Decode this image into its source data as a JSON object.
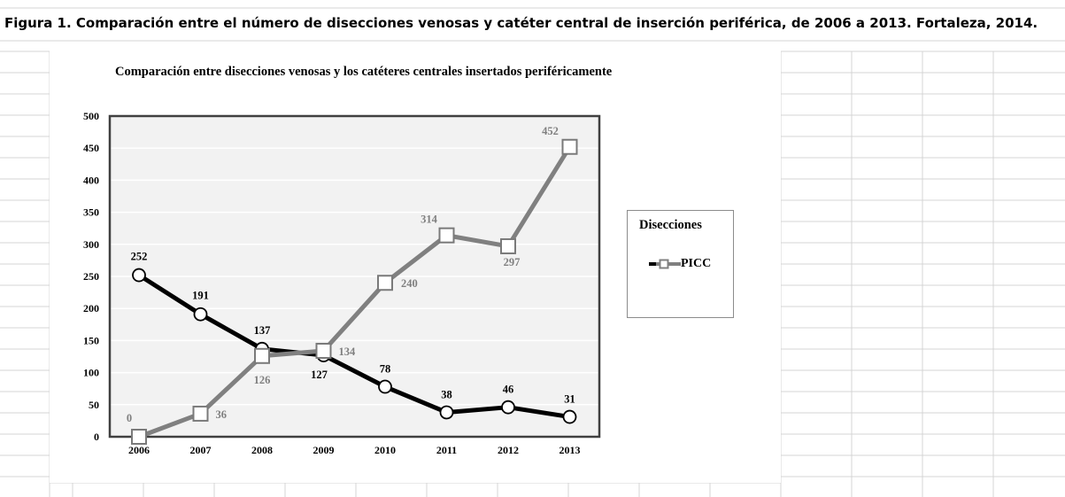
{
  "caption": "Figura 1. Comparación entre el número de disecciones venosas y catéter central de inserción periférica, de 2006 a 2013. Fortaleza, 2014.",
  "colors": {
    "dissections": "#000000",
    "picc": "#808080",
    "plot_background": "#f2f2f2",
    "gridline": "#ffffff",
    "sheet_grid": "#d4d4d4"
  },
  "legend": {
    "title": "Disecciones",
    "item_label": "PICC"
  },
  "chart_data": {
    "type": "line",
    "title": "Comparación entre disecciones venosas y los catéteres centrales insertados periféricamente",
    "xlabel": "",
    "ylabel": "",
    "categories": [
      "2006",
      "2007",
      "2008",
      "2009",
      "2010",
      "2011",
      "2012",
      "2013"
    ],
    "ylim": [
      0,
      500
    ],
    "y_ticks": [
      "0",
      "50",
      "100",
      "150",
      "200",
      "250",
      "300",
      "350",
      "400",
      "450",
      "500"
    ],
    "grid": true,
    "legend_position": "right",
    "series": [
      {
        "name": "Disecciones",
        "values": [
          252,
          191,
          137,
          127,
          78,
          38,
          46,
          31
        ],
        "marker": "circle",
        "color": "#000000",
        "labels": [
          "252",
          "191",
          "137",
          "127",
          "78",
          "38",
          "46",
          "31"
        ]
      },
      {
        "name": "PICC",
        "values": [
          0,
          36,
          126,
          134,
          240,
          314,
          297,
          452
        ],
        "marker": "square",
        "color": "#808080",
        "labels": [
          "0",
          "36",
          "126",
          "134",
          "240",
          "314",
          "297",
          "452"
        ]
      }
    ]
  }
}
